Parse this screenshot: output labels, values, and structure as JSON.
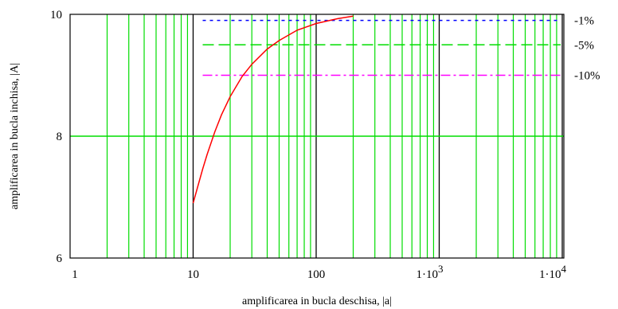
{
  "chart_data": {
    "type": "line",
    "title": "",
    "xlabel": "amplificarea in bucla deschisa, |a|",
    "ylabel": "amplificarea in bucla inchisa, |A|",
    "x_scale": "log",
    "xlim": [
      1,
      15000
    ],
    "ylim": [
      6,
      10
    ],
    "x_ticks": [
      {
        "value": 1,
        "label": "1"
      },
      {
        "value": 10,
        "label": "10"
      },
      {
        "value": 100,
        "label": "100"
      },
      {
        "value": 1000,
        "label": "1·10",
        "exp": "3"
      },
      {
        "value": 10000,
        "label": "1·10",
        "exp": "4"
      }
    ],
    "y_ticks": [
      {
        "value": 6,
        "label": "6"
      },
      {
        "value": 8,
        "label": "8"
      },
      {
        "value": 10,
        "label": "10"
      }
    ],
    "grid": true,
    "colors": {
      "minor_grid": "#00dd00",
      "major_grid": "#000000",
      "curve": "#ff0000",
      "ref_1": "#0000ff",
      "ref_5": "#00dd00",
      "ref_10": "#ff00ff"
    },
    "series": [
      {
        "x": [
          10,
          11,
          12,
          13,
          15,
          17,
          20,
          25,
          30,
          40,
          50,
          70,
          100,
          150,
          200
        ],
        "y": [
          6.9,
          7.2,
          7.47,
          7.7,
          8.07,
          8.35,
          8.65,
          8.98,
          9.18,
          9.43,
          9.57,
          9.74,
          9.85,
          9.93,
          9.97
        ]
      }
    ],
    "reference_lines": [
      {
        "y": 9.9,
        "label": "-1%",
        "style": "dotted",
        "x_start": 10
      },
      {
        "y": 9.5,
        "label": "-5%",
        "style": "dashed",
        "x_start": 10
      },
      {
        "y": 9.0,
        "label": "-10%",
        "style": "dashdot",
        "x_start": 10
      }
    ]
  }
}
